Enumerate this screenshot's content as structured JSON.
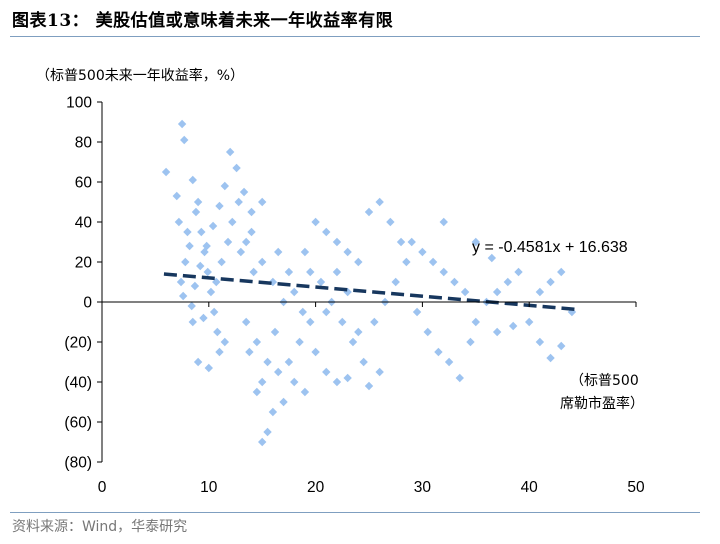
{
  "figure": {
    "title": "图表13：  美股估值或意味着未来一年收益率有限",
    "source": "资料来源：Wind，华泰研究"
  },
  "chart_data": {
    "type": "scatter",
    "ylabel": "（标普500未来一年收益率，%）",
    "xlabel": [
      "（标普500",
      "席勒市盈率）"
    ],
    "xlim": [
      0,
      50
    ],
    "ylim": [
      -80,
      100
    ],
    "x_ticks": [
      0,
      10,
      20,
      30,
      40,
      50
    ],
    "y_ticks": [
      100,
      80,
      60,
      40,
      20,
      0,
      -20,
      -40,
      -60,
      -80
    ],
    "y_tick_labels": [
      "100",
      "80",
      "60",
      "40",
      "20",
      "0",
      "(20)",
      "(40)",
      "(60)",
      "(80)"
    ],
    "grid": false,
    "marker_color": "#9dc3f0",
    "trendline": {
      "equation": "y = -0.4581x + 16.638",
      "slope": -0.4581,
      "intercept": 16.638,
      "x_range": [
        5.8,
        44.5
      ],
      "color": "#17375e",
      "style": "dashed"
    },
    "point_groups": [
      {
        "name": "",
        "points": [
          [
            7.5,
            89
          ],
          [
            7.7,
            81
          ],
          [
            6,
            65
          ],
          [
            8.5,
            61
          ],
          [
            7,
            53
          ],
          [
            7.2,
            40
          ],
          [
            8,
            35
          ],
          [
            7.8,
            20
          ],
          [
            7.4,
            10
          ],
          [
            7.6,
            3
          ],
          [
            8.2,
            28
          ],
          [
            8.8,
            45
          ],
          [
            9,
            50
          ],
          [
            9.3,
            35
          ],
          [
            9.6,
            25
          ],
          [
            9.9,
            15
          ],
          [
            10.2,
            5
          ],
          [
            10.5,
            -5
          ],
          [
            10.8,
            -15
          ],
          [
            11,
            -25
          ],
          [
            9,
            -30
          ],
          [
            10,
            -33
          ],
          [
            11.5,
            -20
          ],
          [
            8.5,
            -10
          ],
          [
            9.5,
            -8
          ],
          [
            10.7,
            10
          ],
          [
            11.2,
            20
          ],
          [
            11.8,
            30
          ],
          [
            12.2,
            40
          ],
          [
            12.8,
            50
          ],
          [
            13.3,
            55
          ],
          [
            12,
            75
          ],
          [
            12.6,
            67
          ],
          [
            11.5,
            58
          ],
          [
            11,
            48
          ],
          [
            10.4,
            38
          ],
          [
            9.8,
            28
          ],
          [
            9.2,
            18
          ],
          [
            8.7,
            8
          ],
          [
            8.4,
            -2
          ]
        ]
      },
      {
        "name": "",
        "points": [
          [
            13,
            25
          ],
          [
            14,
            35
          ],
          [
            15,
            20
          ],
          [
            16,
            10
          ],
          [
            17,
            0
          ],
          [
            13.5,
            -10
          ],
          [
            14.5,
            -20
          ],
          [
            15.5,
            -30
          ],
          [
            16.5,
            -35
          ],
          [
            15,
            -40
          ],
          [
            14.5,
            -45
          ],
          [
            16,
            -55
          ],
          [
            15.5,
            -65
          ],
          [
            15,
            -70
          ],
          [
            17,
            -50
          ],
          [
            18,
            -40
          ],
          [
            19,
            -45
          ],
          [
            17.5,
            -30
          ],
          [
            18.5,
            -20
          ],
          [
            19.5,
            -10
          ],
          [
            14,
            45
          ],
          [
            15,
            50
          ],
          [
            13.5,
            30
          ],
          [
            16.5,
            25
          ],
          [
            17.5,
            15
          ],
          [
            18,
            5
          ],
          [
            18.8,
            -5
          ],
          [
            16.2,
            -15
          ],
          [
            13.8,
            -25
          ],
          [
            14.2,
            15
          ]
        ]
      },
      {
        "name": "",
        "points": [
          [
            20,
            40
          ],
          [
            21,
            35
          ],
          [
            22,
            30
          ],
          [
            23,
            25
          ],
          [
            24,
            20
          ],
          [
            20.5,
            10
          ],
          [
            21.5,
            0
          ],
          [
            22.5,
            -10
          ],
          [
            23.5,
            -20
          ],
          [
            24.5,
            -30
          ],
          [
            20,
            -25
          ],
          [
            21,
            -35
          ],
          [
            22,
            -40
          ],
          [
            23,
            -38
          ],
          [
            25,
            -42
          ],
          [
            26,
            -35
          ],
          [
            19,
            25
          ],
          [
            19.5,
            15
          ],
          [
            25,
            45
          ],
          [
            26,
            50
          ],
          [
            27,
            40
          ],
          [
            28,
            30
          ],
          [
            28.5,
            20
          ],
          [
            27.5,
            10
          ],
          [
            26.5,
            0
          ],
          [
            25.5,
            -10
          ],
          [
            24,
            -15
          ],
          [
            22,
            15
          ],
          [
            21,
            -5
          ],
          [
            23,
            5
          ]
        ]
      },
      {
        "name": "",
        "points": [
          [
            29,
            30
          ],
          [
            30,
            25
          ],
          [
            31,
            20
          ],
          [
            32,
            15
          ],
          [
            33,
            10
          ],
          [
            34,
            5
          ],
          [
            29.5,
            -5
          ],
          [
            30.5,
            -15
          ],
          [
            31.5,
            -25
          ],
          [
            32.5,
            -30
          ],
          [
            33.5,
            -38
          ],
          [
            34.5,
            -20
          ],
          [
            35,
            -10
          ],
          [
            36,
            0
          ],
          [
            37,
            5
          ],
          [
            38,
            10
          ],
          [
            39,
            15
          ],
          [
            40,
            -10
          ],
          [
            41,
            -20
          ],
          [
            42,
            -28
          ],
          [
            43,
            -22
          ],
          [
            44,
            -5
          ],
          [
            42,
            10
          ],
          [
            43,
            15
          ],
          [
            41,
            5
          ],
          [
            38.5,
            -12
          ],
          [
            37,
            -15
          ],
          [
            36.5,
            22
          ],
          [
            35,
            30
          ],
          [
            32,
            40
          ]
        ]
      }
    ]
  }
}
